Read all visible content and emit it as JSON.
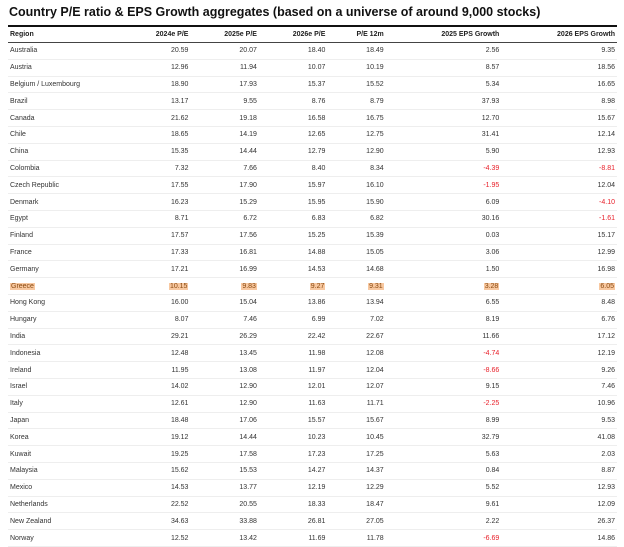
{
  "title": "Country P/E ratio & EPS Growth aggregates (based on a universe of around 9,000 stocks)",
  "columns": [
    "Region",
    "2024e P/E",
    "2025e P/E",
    "2026e P/E",
    "P/E 12m",
    "2025 EPS Growth",
    "2026 EPS Growth"
  ],
  "highlight_color": "#f8c8a0",
  "negative_color": "#e8202a",
  "rows": [
    [
      "Australia",
      "20.59",
      "20.07",
      "18.40",
      "18.49",
      "2.56",
      "9.35"
    ],
    [
      "Austria",
      "12.96",
      "11.94",
      "10.07",
      "10.19",
      "8.57",
      "18.56"
    ],
    [
      "Belgium / Luxembourg",
      "18.90",
      "17.93",
      "15.37",
      "15.52",
      "5.34",
      "16.65"
    ],
    [
      "Brazil",
      "13.17",
      "9.55",
      "8.76",
      "8.79",
      "37.93",
      "8.98"
    ],
    [
      "Canada",
      "21.62",
      "19.18",
      "16.58",
      "16.75",
      "12.70",
      "15.67"
    ],
    [
      "Chile",
      "18.65",
      "14.19",
      "12.65",
      "12.75",
      "31.41",
      "12.14"
    ],
    [
      "China",
      "15.35",
      "14.44",
      "12.79",
      "12.90",
      "5.90",
      "12.93"
    ],
    [
      "Colombia",
      "7.32",
      "7.66",
      "8.40",
      "8.34",
      "-4.39",
      "-8.81"
    ],
    [
      "Czech Republic",
      "17.55",
      "17.90",
      "15.97",
      "16.10",
      "-1.95",
      "12.04"
    ],
    [
      "Denmark",
      "16.23",
      "15.29",
      "15.95",
      "15.90",
      "6.09",
      "-4.10"
    ],
    [
      "Egypt",
      "8.71",
      "6.72",
      "6.83",
      "6.82",
      "30.16",
      "-1.61"
    ],
    [
      "Finland",
      "17.57",
      "17.56",
      "15.25",
      "15.39",
      "0.03",
      "15.17"
    ],
    [
      "France",
      "17.33",
      "16.81",
      "14.88",
      "15.05",
      "3.06",
      "12.99"
    ],
    [
      "Germany",
      "17.21",
      "16.99",
      "14.53",
      "14.68",
      "1.50",
      "16.98"
    ],
    [
      "Greece",
      "10.15",
      "9.83",
      "9.27",
      "9.31",
      "3.28",
      "6.05"
    ],
    [
      "Hong Kong",
      "16.00",
      "15.04",
      "13.86",
      "13.94",
      "6.55",
      "8.48"
    ],
    [
      "Hungary",
      "8.07",
      "7.46",
      "6.99",
      "7.02",
      "8.19",
      "6.76"
    ],
    [
      "India",
      "29.21",
      "26.29",
      "22.42",
      "22.67",
      "11.66",
      "17.12"
    ],
    [
      "Indonesia",
      "12.48",
      "13.45",
      "11.98",
      "12.08",
      "-4.74",
      "12.19"
    ],
    [
      "Ireland",
      "11.95",
      "13.08",
      "11.97",
      "12.04",
      "-8.66",
      "9.26"
    ],
    [
      "Israel",
      "14.02",
      "12.90",
      "12.01",
      "12.07",
      "9.15",
      "7.46"
    ],
    [
      "Italy",
      "12.61",
      "12.90",
      "11.63",
      "11.71",
      "-2.25",
      "10.96"
    ],
    [
      "Japan",
      "18.48",
      "17.06",
      "15.57",
      "15.67",
      "8.99",
      "9.53"
    ],
    [
      "Korea",
      "19.12",
      "14.44",
      "10.23",
      "10.45",
      "32.79",
      "41.08"
    ],
    [
      "Kuwait",
      "19.25",
      "17.58",
      "17.23",
      "17.25",
      "5.63",
      "2.03"
    ],
    [
      "Malaysia",
      "15.62",
      "15.53",
      "14.27",
      "14.37",
      "0.84",
      "8.87"
    ],
    [
      "Mexico",
      "14.53",
      "13.77",
      "12.19",
      "12.29",
      "5.52",
      "12.93"
    ],
    [
      "Netherlands",
      "22.52",
      "20.55",
      "18.33",
      "18.47",
      "9.61",
      "12.09"
    ],
    [
      "New Zealand",
      "34.63",
      "33.88",
      "26.81",
      "27.05",
      "2.22",
      "26.37"
    ],
    [
      "Norway",
      "12.52",
      "13.42",
      "11.69",
      "11.78",
      "-6.69",
      "14.86"
    ]
  ],
  "highlight_row": "Greece"
}
